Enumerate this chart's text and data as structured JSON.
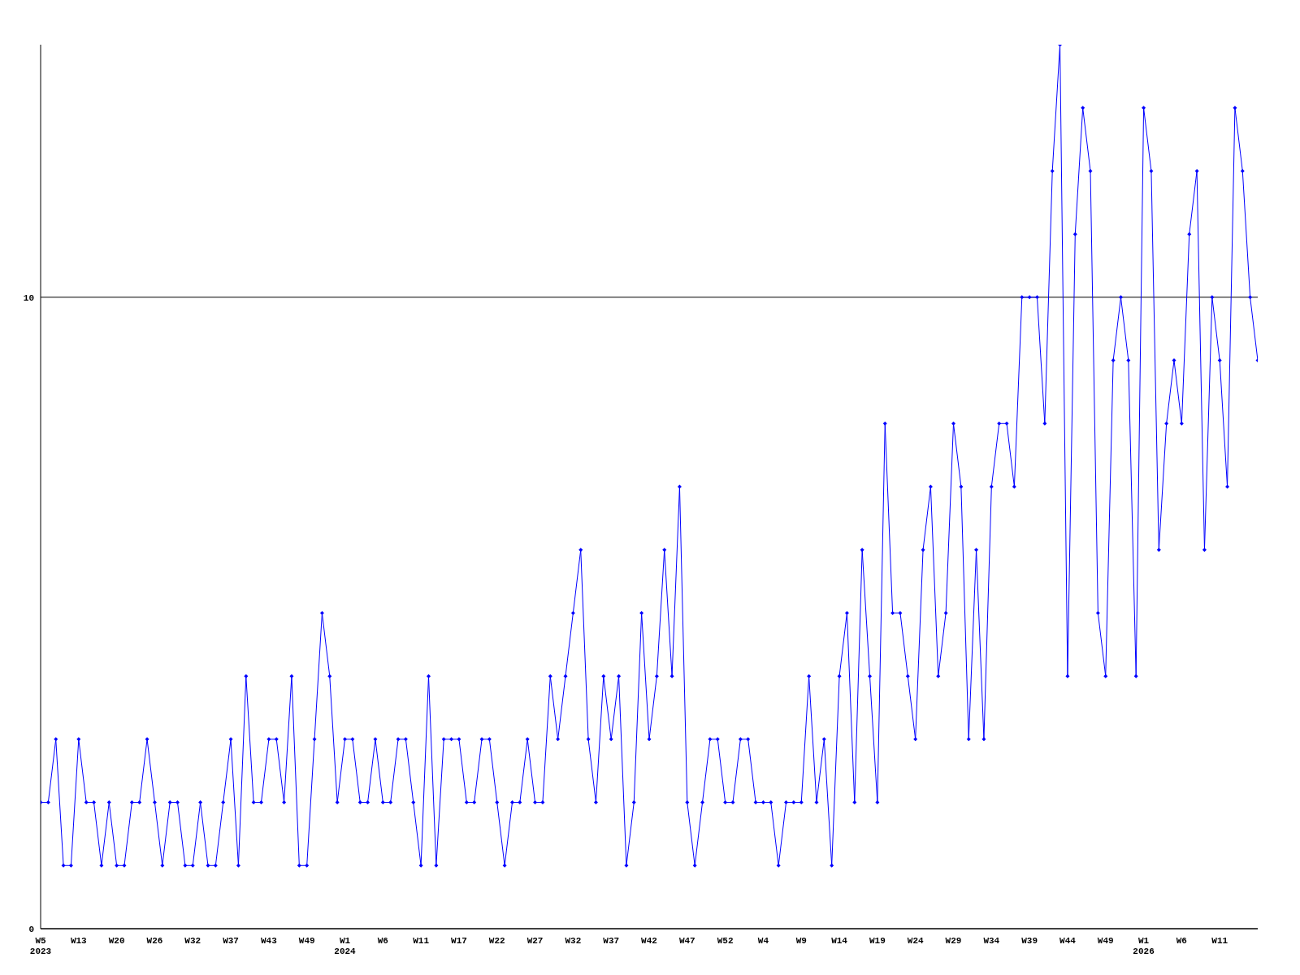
{
  "chart_data": {
    "type": "line",
    "categories": [
      "W5 2023",
      null,
      null,
      null,
      null,
      "W13",
      null,
      null,
      null,
      null,
      "W20",
      null,
      null,
      null,
      null,
      "W26",
      null,
      null,
      null,
      null,
      "W32",
      null,
      null,
      null,
      null,
      "W37",
      null,
      null,
      null,
      null,
      "W43",
      null,
      null,
      null,
      null,
      "W49",
      null,
      null,
      null,
      null,
      "W1 2024",
      null,
      null,
      null,
      null,
      "W6",
      null,
      null,
      null,
      null,
      "W11",
      null,
      null,
      null,
      null,
      "W17",
      null,
      null,
      null,
      null,
      "W22",
      null,
      null,
      null,
      null,
      "W27",
      null,
      null,
      null,
      null,
      "W32",
      null,
      null,
      null,
      null,
      "W37",
      null,
      null,
      null,
      null,
      "W42",
      null,
      null,
      null,
      null,
      "W47",
      null,
      null,
      null,
      null,
      "W52",
      null,
      null,
      null,
      null,
      "W4",
      null,
      null,
      null,
      null,
      "W9",
      null,
      null,
      null,
      null,
      "W14",
      null,
      null,
      null,
      null,
      "W19",
      null,
      null,
      null,
      null,
      "W24",
      null,
      null,
      null,
      null,
      "W29",
      null,
      null,
      null,
      null,
      "W34",
      null,
      null,
      null,
      null,
      "W39",
      null,
      null,
      null,
      null,
      "W44",
      null,
      null,
      null,
      null,
      "W49",
      null,
      null,
      null,
      null,
      "W1 2026",
      null,
      null,
      null,
      null,
      "W6",
      null,
      null,
      null,
      null,
      "W11",
      null,
      null,
      null,
      null,
      null
    ],
    "series": [
      {
        "color": "#0000ff",
        "values": [
          2,
          2,
          3,
          1,
          1,
          3,
          2,
          2,
          1,
          2,
          1,
          1,
          2,
          2,
          3,
          2,
          1,
          2,
          2,
          1,
          1,
          2,
          1,
          1,
          2,
          3,
          1,
          4,
          2,
          2,
          3,
          3,
          2,
          4,
          1,
          1,
          3,
          5,
          4,
          2,
          3,
          3,
          2,
          2,
          3,
          2,
          2,
          3,
          3,
          2,
          1,
          4,
          1,
          3,
          3,
          3,
          2,
          2,
          3,
          3,
          2,
          1,
          2,
          2,
          3,
          2,
          2,
          4,
          3,
          4,
          5,
          6,
          3,
          2,
          4,
          3,
          4,
          1,
          2,
          5,
          3,
          4,
          6,
          4,
          7,
          2,
          1,
          2,
          3,
          3,
          2,
          2,
          3,
          3,
          2,
          2,
          2,
          1,
          2,
          2,
          2,
          4,
          2,
          3,
          1,
          4,
          5,
          2,
          6,
          4,
          2,
          8,
          5,
          5,
          4,
          3,
          6,
          7,
          4,
          5,
          8,
          7,
          3,
          6,
          3,
          7,
          8,
          8,
          7,
          10,
          10,
          10,
          8,
          12,
          14,
          4,
          11,
          13,
          12,
          5,
          4,
          9,
          10,
          9,
          4,
          13,
          12,
          6,
          8,
          9,
          8,
          11,
          12,
          6,
          10,
          9,
          7,
          13,
          12,
          10,
          9
        ]
      }
    ],
    "ylim": [
      0,
      14
    ],
    "yticks": [
      0,
      10
    ],
    "grid": "y",
    "marker": "diamond",
    "line_style": "solid"
  }
}
